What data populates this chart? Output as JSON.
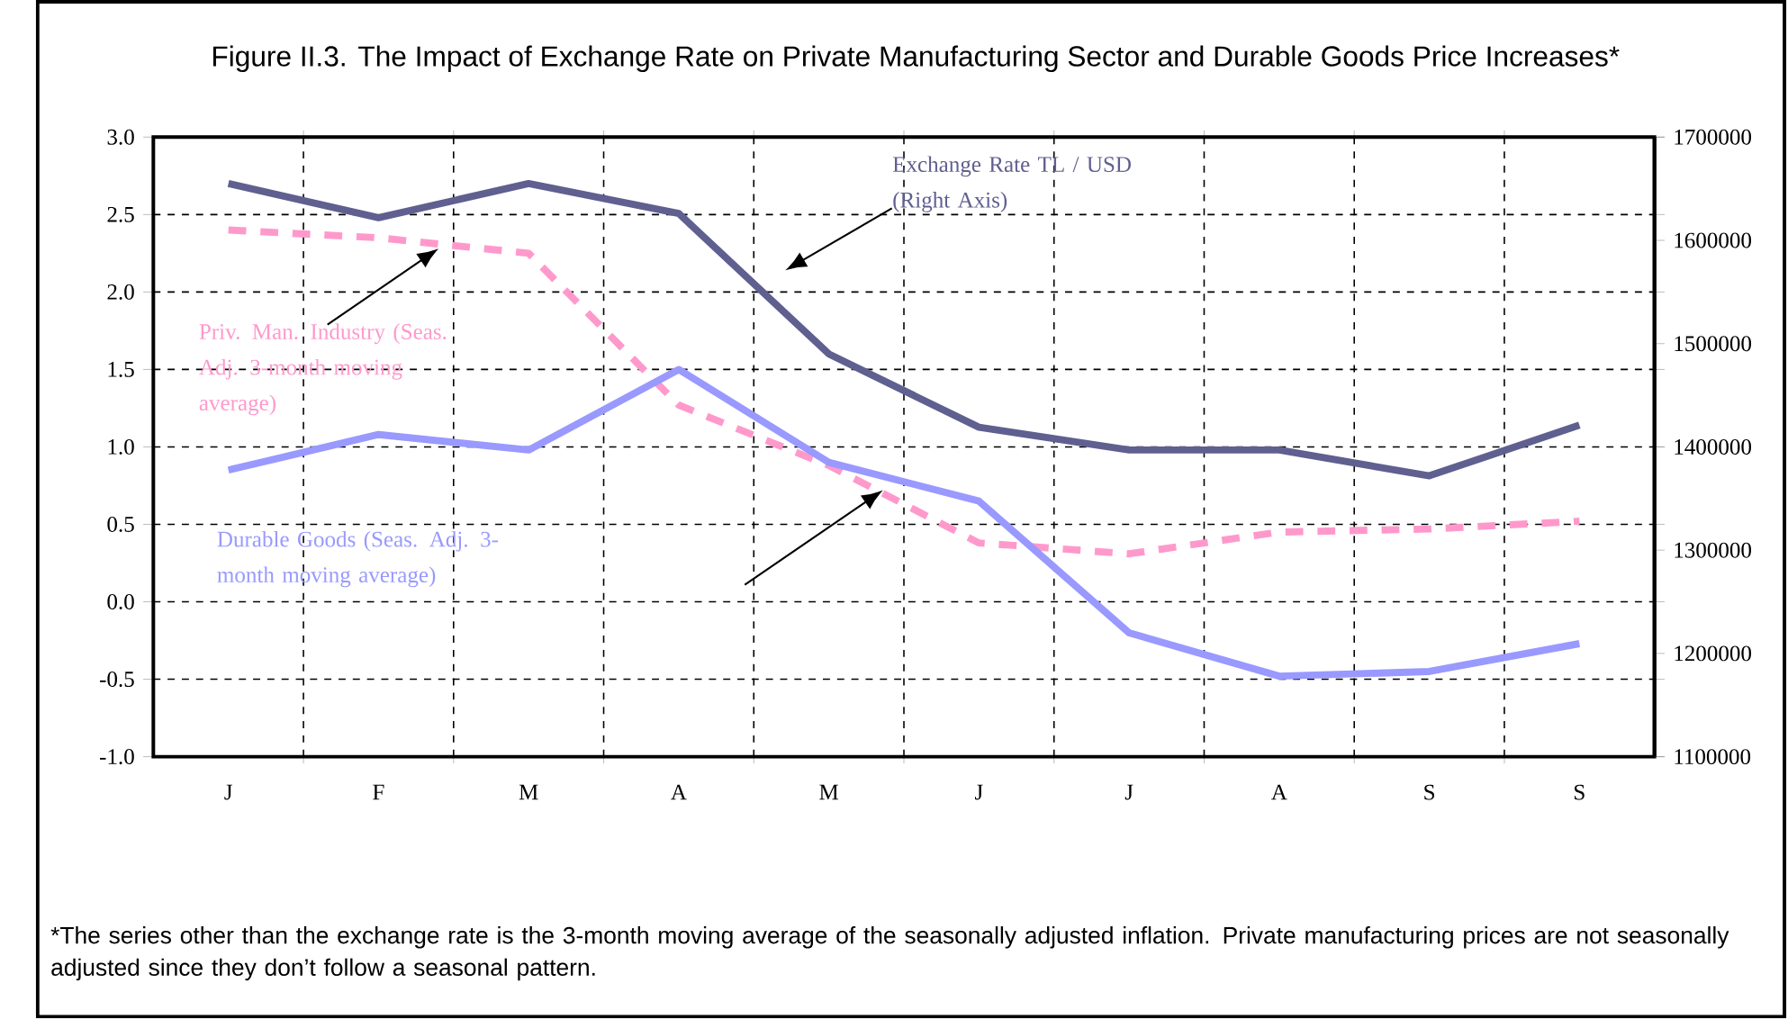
{
  "chart_data": {
    "type": "line",
    "title": "Figure II.3. The Impact of Exchange  Rate on Private Manufacturing Sector and Durable Goods Price Increases*",
    "categories": [
      "J",
      "F",
      "M",
      "A",
      "M",
      "J",
      "J",
      "A",
      "S",
      "S"
    ],
    "series": [
      {
        "name": "Exchange Rate TL / USD (Right Axis)",
        "color": "#5f5f90",
        "axis": "y2",
        "line_style": "solid",
        "values": [
          1655000,
          1622000,
          1655000,
          1626000,
          1490000,
          1419000,
          1397000,
          1397000,
          1372000,
          1421000
        ]
      },
      {
        "name": "Priv. Man. Industry (Seas. Adj. 3-month moving average)",
        "color": "#ff99cc",
        "line_style": "dashed",
        "values": [
          2.4,
          2.35,
          2.25,
          1.27,
          0.88,
          0.38,
          0.31,
          0.45,
          0.47,
          0.52
        ]
      },
      {
        "name": "Durable Goods (Seas. Adj. 3-month moving average)",
        "color": "#9999ff",
        "line_style": "solid",
        "values": [
          0.85,
          1.08,
          0.98,
          1.5,
          0.9,
          0.65,
          -0.2,
          -0.48,
          -0.45,
          -0.27
        ]
      }
    ],
    "ylim": [
      -1.0,
      3.0
    ],
    "yticks": [
      {
        "value": -1.0,
        "label": "-1.0"
      },
      {
        "value": -0.5,
        "label": "-0.5"
      },
      {
        "value": 0,
        "label": "0.0"
      },
      {
        "value": 0.5,
        "label": "0.5"
      },
      {
        "value": 1.0,
        "label": "1.0"
      },
      {
        "value": 1.5,
        "label": "1.5"
      },
      {
        "value": 2.0,
        "label": "2.0"
      },
      {
        "value": 2.5,
        "label": "2.5"
      },
      {
        "value": 3.0,
        "label": "3.0"
      }
    ],
    "y2lim": [
      1100000,
      1700000
    ],
    "y2ticks": [
      1100000,
      1200000,
      1300000,
      1400000,
      1500000,
      1600000,
      1700000
    ],
    "grid": true,
    "marker": "none",
    "annotations": [
      "*The series other than the exchange rate is the 3-month moving average of the seasonally adjusted inflation. Private manufacturing prices are not seasonally adjusted since they don’t follow a seasonal pattern."
    ]
  }
}
